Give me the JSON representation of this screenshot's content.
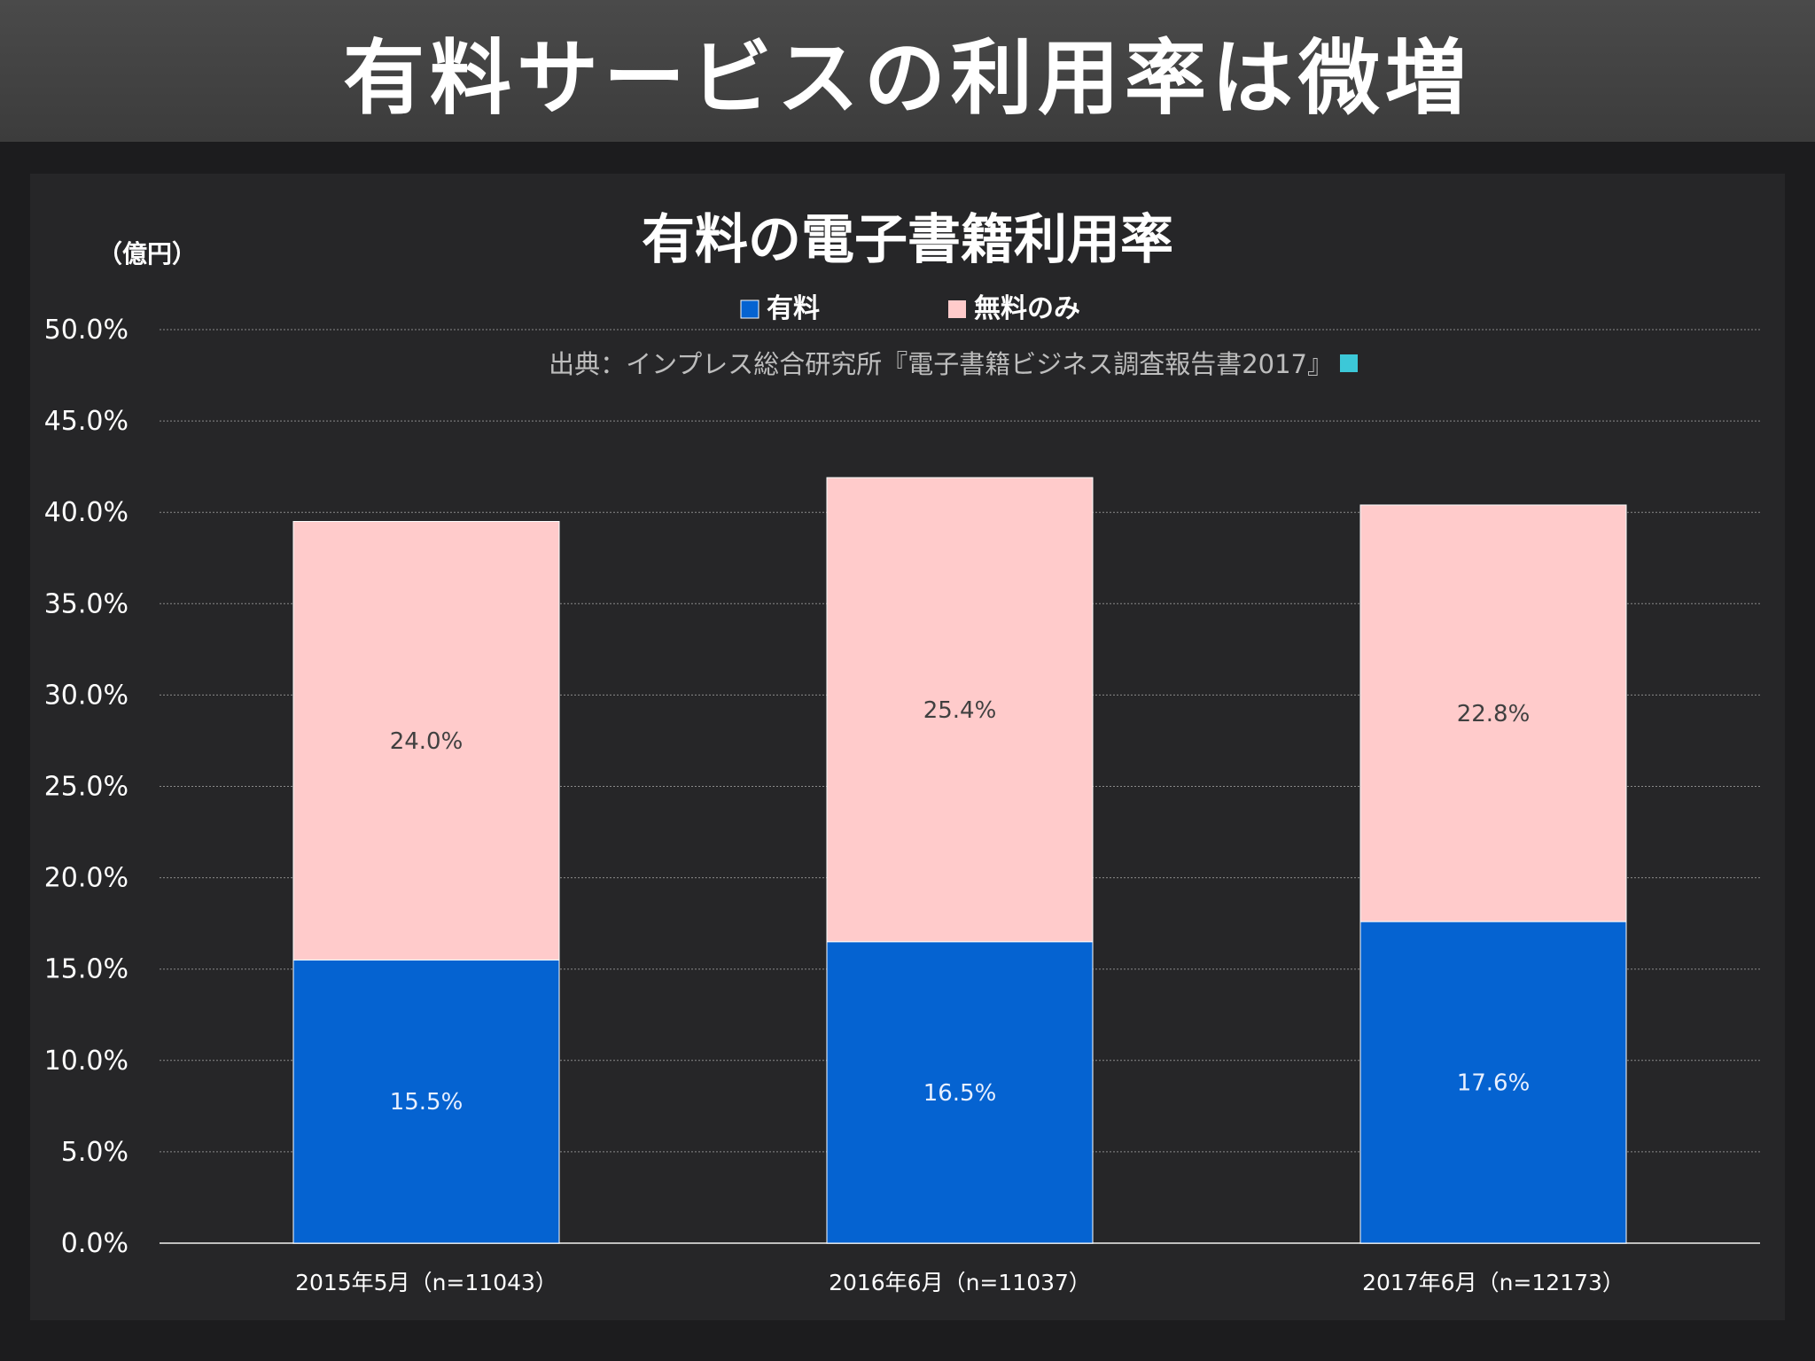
{
  "header": {
    "title": "有料サービスの利用率は微増"
  },
  "chart_data": {
    "type": "bar",
    "stacked": true,
    "title": "有料の電子書籍利用率",
    "unit_label": "（億円）",
    "source": "出典：インプレス総合研究所『電子書籍ビジネス調査報告書2017』",
    "categories": [
      "2015年5月（n=11043）",
      "2016年6月（n=11037）",
      "2017年6月（n=12173）"
    ],
    "series": [
      {
        "name": "有料",
        "values": [
          15.5,
          16.5,
          17.6
        ],
        "color": "#0563d1",
        "labels": [
          "15.5%",
          "16.5%",
          "17.6%"
        ],
        "label_color": "#e8f0ff"
      },
      {
        "name": "無料のみ",
        "values": [
          24.0,
          25.4,
          22.8
        ],
        "color": "#ffcbcb",
        "labels": [
          "24.0%",
          "25.4%",
          "22.8%"
        ],
        "label_color": "#404040"
      }
    ],
    "ylim": [
      0,
      50
    ],
    "yticks": [
      "0.0%",
      "5.0%",
      "10.0%",
      "15.0%",
      "20.0%",
      "25.0%",
      "30.0%",
      "35.0%",
      "40.0%",
      "45.0%",
      "50.0%"
    ],
    "grid": true,
    "legend_position": "top",
    "source_marker_color": "#3cc8d8"
  }
}
